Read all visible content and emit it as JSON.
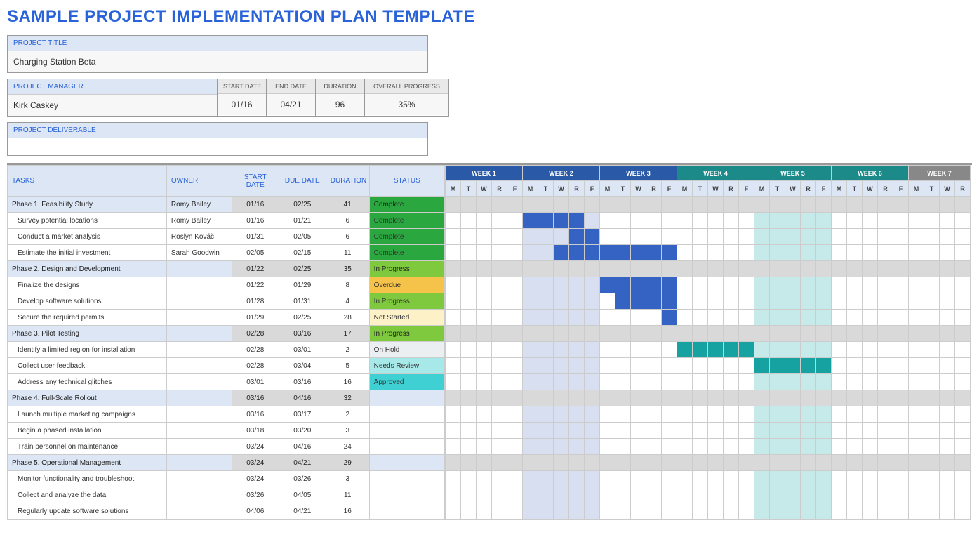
{
  "title": "SAMPLE PROJECT IMPLEMENTATION PLAN TEMPLATE",
  "project_title_label": "PROJECT TITLE",
  "project_title": "Charging Station Beta",
  "project_manager_label": "PROJECT MANAGER",
  "project_manager": "Kirk Caskey",
  "subheads": {
    "start_date": "START DATE",
    "end_date": "END DATE",
    "duration": "DURATION",
    "overall_progress": "OVERALL PROGRESS"
  },
  "subvals": {
    "start_date": "01/16",
    "end_date": "04/21",
    "duration": "96",
    "overall_progress": "35%"
  },
  "deliverable_label": "PROJECT DELIVERABLE",
  "cols": {
    "tasks": "TASKS",
    "owner": "OWNER",
    "start": "START DATE",
    "due": "DUE DATE",
    "duration": "DURATION",
    "status": "STATUS"
  },
  "weeks": [
    {
      "label": "WEEK 1",
      "group": 1
    },
    {
      "label": "WEEK 2",
      "group": 1
    },
    {
      "label": "WEEK 3",
      "group": 1
    },
    {
      "label": "WEEK 4",
      "group": 2
    },
    {
      "label": "WEEK 5",
      "group": 2
    },
    {
      "label": "WEEK 6",
      "group": 2
    },
    {
      "label": "WEEK 7",
      "group": 3
    }
  ],
  "days": [
    "M",
    "T",
    "W",
    "R",
    "F"
  ],
  "status_colors": {
    "Complete": "#2aa83f",
    "In Progress": "#7ec93e",
    "Overdue": "#f6c34a",
    "Not Started": "#fdf2c7",
    "On Hold": "#eceff1",
    "Needs Review": "#a7e8e8",
    "Approved": "#3fd0d4",
    "": ""
  },
  "gantt_colors": {
    "bar_blue": "#3563c4",
    "bar_teal": "#1fb8b8",
    "bar_solid_teal": "#17a2a2",
    "light_blue": "#d7dff1",
    "light_teal": "#c6e9e9",
    "phase_gray": "#d9d9d9"
  },
  "rows": [
    {
      "type": "phase",
      "task": "Phase 1.  Feasibility Study",
      "owner": "Romy Bailey",
      "start": "01/16",
      "due": "02/25",
      "dur": "41",
      "status": "Complete",
      "gantt": {}
    },
    {
      "type": "sub",
      "task": "Survey potential locations",
      "owner": "Romy Bailey",
      "start": "01/16",
      "due": "01/21",
      "dur": "6",
      "status": "Complete",
      "gantt": {
        "bars": [
          [
            5,
            8,
            "bar_blue"
          ]
        ],
        "shaded": [
          [
            5,
            9,
            "light_blue"
          ],
          [
            20,
            24,
            "light_teal"
          ]
        ]
      }
    },
    {
      "type": "sub",
      "task": "Conduct a market analysis",
      "owner": "Roslyn Kováč",
      "start": "01/31",
      "due": "02/05",
      "dur": "6",
      "status": "Complete",
      "gantt": {
        "bars": [
          [
            8,
            9,
            "bar_blue"
          ]
        ],
        "shaded": [
          [
            5,
            9,
            "light_blue"
          ],
          [
            20,
            24,
            "light_teal"
          ]
        ]
      }
    },
    {
      "type": "sub",
      "task": "Estimate the initial investment",
      "owner": "Sarah Goodwin",
      "start": "02/05",
      "due": "02/15",
      "dur": "11",
      "status": "Complete",
      "gantt": {
        "bars": [
          [
            7,
            14,
            "bar_blue"
          ]
        ],
        "shaded": [
          [
            5,
            9,
            "light_blue"
          ],
          [
            20,
            24,
            "light_teal"
          ]
        ]
      }
    },
    {
      "type": "phase",
      "task": "Phase 2.  Design and Development",
      "owner": "",
      "start": "01/22",
      "due": "02/25",
      "dur": "35",
      "status": "In Progress",
      "gantt": {}
    },
    {
      "type": "sub",
      "task": "Finalize the designs",
      "owner": "",
      "start": "01/22",
      "due": "01/29",
      "dur": "8",
      "status": "Overdue",
      "gantt": {
        "bars": [
          [
            10,
            14,
            "bar_blue"
          ]
        ],
        "shaded": [
          [
            5,
            9,
            "light_blue"
          ],
          [
            20,
            24,
            "light_teal"
          ]
        ]
      }
    },
    {
      "type": "sub",
      "task": "Develop software solutions",
      "owner": "",
      "start": "01/28",
      "due": "01/31",
      "dur": "4",
      "status": "In Progress",
      "gantt": {
        "bars": [
          [
            11,
            14,
            "bar_blue"
          ]
        ],
        "shaded": [
          [
            5,
            9,
            "light_blue"
          ],
          [
            20,
            24,
            "light_teal"
          ]
        ]
      }
    },
    {
      "type": "sub",
      "task": "Secure the required permits",
      "owner": "",
      "start": "01/29",
      "due": "02/25",
      "dur": "28",
      "status": "Not Started",
      "gantt": {
        "bars": [
          [
            14,
            14,
            "bar_blue"
          ]
        ],
        "shaded": [
          [
            5,
            9,
            "light_blue"
          ],
          [
            20,
            24,
            "light_teal"
          ]
        ]
      }
    },
    {
      "type": "phase",
      "task": "Phase 3.  Pilot Testing",
      "owner": "",
      "start": "02/28",
      "due": "03/16",
      "dur": "17",
      "status": "In Progress",
      "gantt": {}
    },
    {
      "type": "sub",
      "task": "Identify a limited region for installation",
      "owner": "",
      "start": "02/28",
      "due": "03/01",
      "dur": "2",
      "status": "On Hold",
      "gantt": {
        "bars": [
          [
            15,
            19,
            "bar_solid_teal"
          ]
        ],
        "shaded": [
          [
            5,
            9,
            "light_blue"
          ],
          [
            20,
            24,
            "light_teal"
          ]
        ]
      }
    },
    {
      "type": "sub",
      "task": "Collect user feedback",
      "owner": "",
      "start": "02/28",
      "due": "03/04",
      "dur": "5",
      "status": "Needs Review",
      "gantt": {
        "bars": [
          [
            20,
            24,
            "bar_solid_teal"
          ]
        ],
        "shaded": [
          [
            5,
            9,
            "light_blue"
          ]
        ]
      }
    },
    {
      "type": "sub",
      "task": "Address any technical glitches",
      "owner": "",
      "start": "03/01",
      "due": "03/16",
      "dur": "16",
      "status": "Approved",
      "gantt": {
        "shaded": [
          [
            5,
            9,
            "light_blue"
          ],
          [
            20,
            24,
            "light_teal"
          ]
        ]
      }
    },
    {
      "type": "phase",
      "task": "Phase 4.  Full-Scale Rollout",
      "owner": "",
      "start": "03/16",
      "due": "04/16",
      "dur": "32",
      "status": "",
      "gantt": {}
    },
    {
      "type": "sub",
      "task": "Launch multiple marketing campaigns",
      "owner": "",
      "start": "03/16",
      "due": "03/17",
      "dur": "2",
      "status": "",
      "gantt": {
        "shaded": [
          [
            5,
            9,
            "light_blue"
          ],
          [
            20,
            24,
            "light_teal"
          ]
        ]
      }
    },
    {
      "type": "sub",
      "task": "Begin a phased installation",
      "owner": "",
      "start": "03/18",
      "due": "03/20",
      "dur": "3",
      "status": "",
      "gantt": {
        "shaded": [
          [
            5,
            9,
            "light_blue"
          ],
          [
            20,
            24,
            "light_teal"
          ]
        ]
      }
    },
    {
      "type": "sub",
      "task": "Train personnel on maintenance",
      "owner": "",
      "start": "03/24",
      "due": "04/16",
      "dur": "24",
      "status": "",
      "gantt": {
        "shaded": [
          [
            5,
            9,
            "light_blue"
          ],
          [
            20,
            24,
            "light_teal"
          ]
        ]
      }
    },
    {
      "type": "phase",
      "task": "Phase 5.  Operational Management",
      "owner": "",
      "start": "03/24",
      "due": "04/21",
      "dur": "29",
      "status": "",
      "gantt": {}
    },
    {
      "type": "sub",
      "task": "Monitor functionality and troubleshoot",
      "owner": "",
      "start": "03/24",
      "due": "03/26",
      "dur": "3",
      "status": "",
      "gantt": {
        "shaded": [
          [
            5,
            9,
            "light_blue"
          ],
          [
            20,
            24,
            "light_teal"
          ]
        ]
      }
    },
    {
      "type": "sub",
      "task": "Collect and analyze the data",
      "owner": "",
      "start": "03/26",
      "due": "04/05",
      "dur": "11",
      "status": "",
      "gantt": {
        "shaded": [
          [
            5,
            9,
            "light_blue"
          ],
          [
            20,
            24,
            "light_teal"
          ]
        ]
      }
    },
    {
      "type": "sub",
      "task": "Regularly update software solutions",
      "owner": "",
      "start": "04/06",
      "due": "04/21",
      "dur": "16",
      "status": "",
      "gantt": {
        "shaded": [
          [
            5,
            9,
            "light_blue"
          ],
          [
            20,
            24,
            "light_teal"
          ]
        ]
      }
    }
  ]
}
